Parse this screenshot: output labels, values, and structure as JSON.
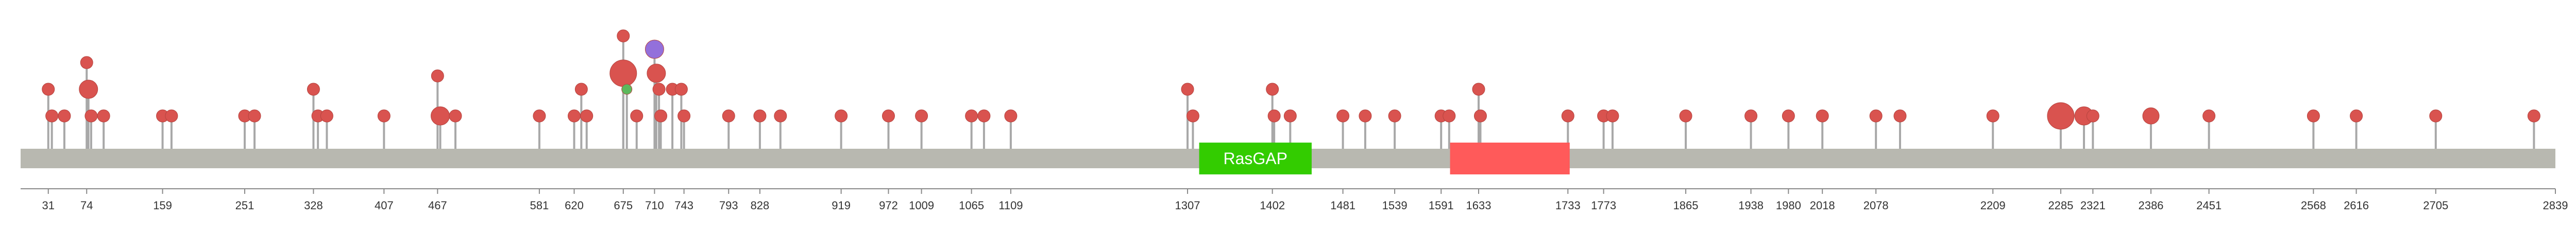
{
  "chart_data": {
    "type": "lollipop",
    "protein_length": 2839,
    "backbone_color": "#b8b8b0",
    "axis_ticks": [
      31,
      74,
      159,
      251,
      328,
      407,
      467,
      581,
      620,
      675,
      710,
      743,
      793,
      828,
      919,
      972,
      1009,
      1065,
      1109,
      1307,
      1402,
      1481,
      1539,
      1591,
      1633,
      1733,
      1773,
      1865,
      1938,
      1980,
      2018,
      2078,
      2209,
      2285,
      2321,
      2386,
      2451,
      2568,
      2616,
      2705,
      2839
    ],
    "domains": [
      {
        "label": "RasGAP",
        "start": 1320,
        "end": 1446,
        "color": "#33cc00"
      },
      {
        "label": "",
        "start": 1601,
        "end": 1735,
        "color": "#ff5a5a"
      }
    ],
    "mutations": [
      {
        "pos": 31,
        "count": 2,
        "color": "#d9534f"
      },
      {
        "pos": 35,
        "count": 1,
        "color": "#d9534f"
      },
      {
        "pos": 49,
        "count": 1,
        "color": "#d9534f"
      },
      {
        "pos": 74,
        "count": 3,
        "color": "#d9534f"
      },
      {
        "pos": 76,
        "count": 2,
        "color": "#d9534f",
        "size": "large"
      },
      {
        "pos": 79,
        "count": 1,
        "color": "#d9534f"
      },
      {
        "pos": 93,
        "count": 1,
        "color": "#d9534f"
      },
      {
        "pos": 159,
        "count": 1,
        "color": "#d9534f"
      },
      {
        "pos": 169,
        "count": 1,
        "color": "#d9534f"
      },
      {
        "pos": 251,
        "count": 1,
        "color": "#d9534f"
      },
      {
        "pos": 262,
        "count": 1,
        "color": "#d9534f"
      },
      {
        "pos": 328,
        "count": 2,
        "color": "#d9534f"
      },
      {
        "pos": 333,
        "count": 1,
        "color": "#d9534f"
      },
      {
        "pos": 343,
        "count": 1,
        "color": "#d9534f"
      },
      {
        "pos": 407,
        "count": 1,
        "color": "#d9534f"
      },
      {
        "pos": 467,
        "count": 2.5,
        "color": "#d9534f"
      },
      {
        "pos": 470,
        "count": 1,
        "color": "#d9534f",
        "size": "large"
      },
      {
        "pos": 487,
        "count": 1,
        "color": "#d9534f"
      },
      {
        "pos": 581,
        "count": 1,
        "color": "#d9534f"
      },
      {
        "pos": 620,
        "count": 1,
        "color": "#d9534f"
      },
      {
        "pos": 628,
        "count": 2,
        "color": "#d9534f"
      },
      {
        "pos": 634,
        "count": 1,
        "color": "#d9534f"
      },
      {
        "pos": 675,
        "count": 4,
        "color": "#d9534f"
      },
      {
        "pos": 675,
        "count": 2.6,
        "color": "#d9534f",
        "size": "xlarge"
      },
      {
        "pos": 679,
        "count": 2,
        "color": "#5cb85c",
        "size": "small"
      },
      {
        "pos": 690,
        "count": 1,
        "color": "#d9534f"
      },
      {
        "pos": 710,
        "count": 3.5,
        "color": "#9370db",
        "size": "large"
      },
      {
        "pos": 712,
        "count": 2.6,
        "color": "#d9534f",
        "size": "large"
      },
      {
        "pos": 715,
        "count": 2,
        "color": "#d9534f"
      },
      {
        "pos": 717,
        "count": 1,
        "color": "#d9534f"
      },
      {
        "pos": 730,
        "count": 2,
        "color": "#d9534f"
      },
      {
        "pos": 740,
        "count": 2,
        "color": "#d9534f"
      },
      {
        "pos": 743,
        "count": 1,
        "color": "#d9534f"
      },
      {
        "pos": 793,
        "count": 1,
        "color": "#d9534f"
      },
      {
        "pos": 828,
        "count": 1,
        "color": "#d9534f"
      },
      {
        "pos": 851,
        "count": 1,
        "color": "#d9534f"
      },
      {
        "pos": 919,
        "count": 1,
        "color": "#d9534f"
      },
      {
        "pos": 972,
        "count": 1,
        "color": "#d9534f"
      },
      {
        "pos": 1009,
        "count": 1,
        "color": "#d9534f"
      },
      {
        "pos": 1065,
        "count": 1,
        "color": "#d9534f"
      },
      {
        "pos": 1079,
        "count": 1,
        "color": "#d9534f"
      },
      {
        "pos": 1109,
        "count": 1,
        "color": "#d9534f"
      },
      {
        "pos": 1307,
        "count": 2,
        "color": "#d9534f"
      },
      {
        "pos": 1313,
        "count": 1,
        "color": "#d9534f"
      },
      {
        "pos": 1402,
        "count": 2,
        "color": "#d9534f"
      },
      {
        "pos": 1404,
        "count": 1,
        "color": "#d9534f"
      },
      {
        "pos": 1422,
        "count": 1,
        "color": "#d9534f"
      },
      {
        "pos": 1481,
        "count": 1,
        "color": "#d9534f"
      },
      {
        "pos": 1506,
        "count": 1,
        "color": "#d9534f"
      },
      {
        "pos": 1539,
        "count": 1,
        "color": "#d9534f"
      },
      {
        "pos": 1591,
        "count": 1,
        "color": "#d9534f"
      },
      {
        "pos": 1600,
        "count": 1,
        "color": "#d9534f"
      },
      {
        "pos": 1633,
        "count": 2,
        "color": "#d9534f"
      },
      {
        "pos": 1635,
        "count": 1,
        "color": "#d9534f"
      },
      {
        "pos": 1733,
        "count": 1,
        "color": "#d9534f"
      },
      {
        "pos": 1773,
        "count": 1,
        "color": "#d9534f"
      },
      {
        "pos": 1783,
        "count": 1,
        "color": "#d9534f"
      },
      {
        "pos": 1865,
        "count": 1,
        "color": "#d9534f"
      },
      {
        "pos": 1938,
        "count": 1,
        "color": "#d9534f"
      },
      {
        "pos": 1980,
        "count": 1,
        "color": "#d9534f"
      },
      {
        "pos": 2018,
        "count": 1,
        "color": "#d9534f"
      },
      {
        "pos": 2078,
        "count": 1,
        "color": "#d9534f"
      },
      {
        "pos": 2105,
        "count": 1,
        "color": "#d9534f"
      },
      {
        "pos": 2209,
        "count": 1,
        "color": "#d9534f"
      },
      {
        "pos": 2285,
        "count": 1,
        "color": "#d9534f",
        "size": "xlarge"
      },
      {
        "pos": 2311,
        "count": 1,
        "color": "#d9534f",
        "size": "large"
      },
      {
        "pos": 2321,
        "count": 1,
        "color": "#d9534f"
      },
      {
        "pos": 2386,
        "count": 1,
        "color": "#d9534f",
        "size": "medium"
      },
      {
        "pos": 2451,
        "count": 1,
        "color": "#d9534f"
      },
      {
        "pos": 2568,
        "count": 1,
        "color": "#d9534f"
      },
      {
        "pos": 2616,
        "count": 1,
        "color": "#d9534f"
      },
      {
        "pos": 2705,
        "count": 1,
        "color": "#d9534f"
      },
      {
        "pos": 2815,
        "count": 1,
        "color": "#d9534f"
      }
    ]
  }
}
